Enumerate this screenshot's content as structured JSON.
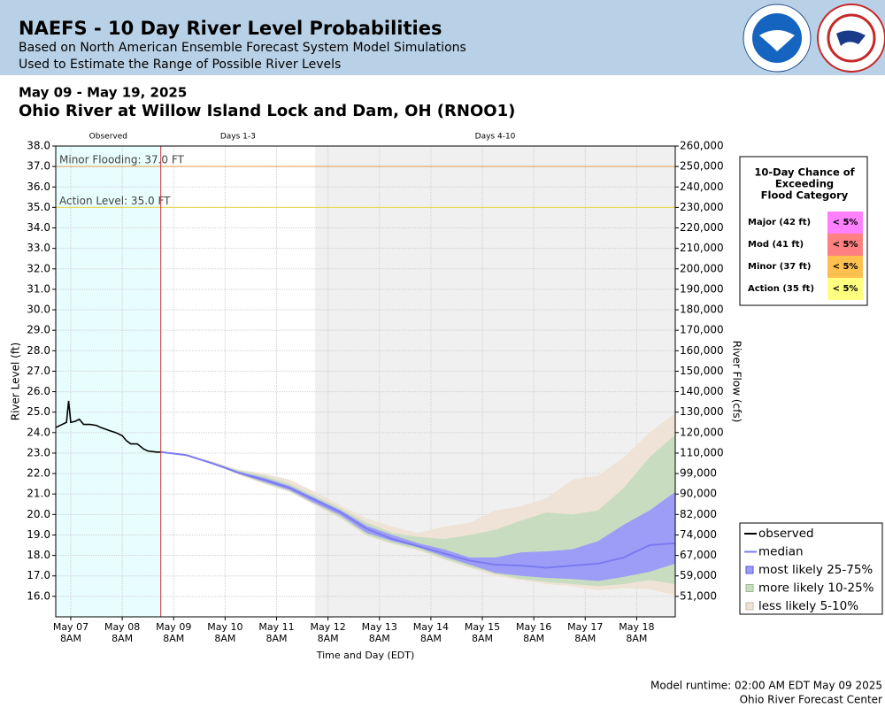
{
  "chart_data": {
    "type": "line",
    "title": "NAEFS - 10 Day River Level Probabilities",
    "subtitle": [
      "Based on North American Ensemble Forecast System Model Simulations",
      "Used to Estimate the Range of Possible River Levels"
    ],
    "date_range": "May 09 - May 19, 2025",
    "station": "Ohio River at Willow Island Lock and Dam, OH (RNOO1)",
    "ylabel": "River Level (ft)",
    "y2label": "River Flow (cfs)",
    "xlabel": "Time and Day (EDT)",
    "xlim": [
      "2025-05-07T01:00",
      "2025-05-19T02:00"
    ],
    "ylim": [
      15,
      38
    ],
    "yticks": [
      {
        "value": 16,
        "label": "16.0"
      },
      {
        "value": 17,
        "label": "17.0"
      },
      {
        "value": 18,
        "label": "18.0"
      },
      {
        "value": 19,
        "label": "19.0"
      },
      {
        "value": 20,
        "label": "20.0"
      },
      {
        "value": 21,
        "label": "21.0"
      },
      {
        "value": 22,
        "label": "22.0"
      },
      {
        "value": 23,
        "label": "23.0"
      },
      {
        "value": 24,
        "label": "24.0"
      },
      {
        "value": 25,
        "label": "25.0"
      },
      {
        "value": 26,
        "label": "26.0"
      },
      {
        "value": 27,
        "label": "27.0"
      },
      {
        "value": 28,
        "label": "28.0"
      },
      {
        "value": 29,
        "label": "29.0"
      },
      {
        "value": 30,
        "label": "30.0"
      },
      {
        "value": 31,
        "label": "31.0"
      },
      {
        "value": 32,
        "label": "32.0"
      },
      {
        "value": 33,
        "label": "33.0"
      },
      {
        "value": 34,
        "label": "34.0"
      },
      {
        "value": 35,
        "label": "35.0"
      },
      {
        "value": 36,
        "label": "36.0"
      },
      {
        "value": 37,
        "label": "37.0"
      },
      {
        "value": 38,
        "label": "38.0"
      }
    ],
    "y2ticks": [
      {
        "value": 51000,
        "label": "51,000"
      },
      {
        "value": 59000,
        "label": "59,000"
      },
      {
        "value": 67000,
        "label": "67,000"
      },
      {
        "value": 74000,
        "label": "74,000"
      },
      {
        "value": 82000,
        "label": "82,000"
      },
      {
        "value": 90000,
        "label": "90,000"
      },
      {
        "value": 99000,
        "label": "99,000"
      },
      {
        "value": 110000,
        "label": "110,000"
      },
      {
        "value": 120000,
        "label": "120,000"
      },
      {
        "value": 130000,
        "label": "130,000"
      },
      {
        "value": 140000,
        "label": "140,000"
      },
      {
        "value": 150000,
        "label": "150,000"
      },
      {
        "value": 160000,
        "label": "160,000"
      },
      {
        "value": 170000,
        "label": "170,000"
      },
      {
        "value": 180000,
        "label": "180,000"
      },
      {
        "value": 190000,
        "label": "190,000"
      },
      {
        "value": 200000,
        "label": "200,000"
      },
      {
        "value": 210000,
        "label": "210,000"
      },
      {
        "value": 220000,
        "label": "220,000"
      },
      {
        "value": 230000,
        "label": "230,000"
      },
      {
        "value": 240000,
        "label": "240,000"
      },
      {
        "value": 250000,
        "label": "250,000"
      },
      {
        "value": 260000,
        "label": "260,000"
      }
    ],
    "xticks": [
      {
        "value": "2025-05-07T08:00",
        "label": [
          "May 07",
          "8AM"
        ]
      },
      {
        "value": "2025-05-08T08:00",
        "label": [
          "May 08",
          "8AM"
        ]
      },
      {
        "value": "2025-05-09T08:00",
        "label": [
          "May 09",
          "8AM"
        ]
      },
      {
        "value": "2025-05-10T08:00",
        "label": [
          "May 10",
          "8AM"
        ]
      },
      {
        "value": "2025-05-11T08:00",
        "label": [
          "May 11",
          "8AM"
        ]
      },
      {
        "value": "2025-05-12T08:00",
        "label": [
          "May 12",
          "8AM"
        ]
      },
      {
        "value": "2025-05-13T08:00",
        "label": [
          "May 13",
          "8AM"
        ]
      },
      {
        "value": "2025-05-14T08:00",
        "label": [
          "May 14",
          "8AM"
        ]
      },
      {
        "value": "2025-05-15T08:00",
        "label": [
          "May 15",
          "8AM"
        ]
      },
      {
        "value": "2025-05-16T08:00",
        "label": [
          "May 16",
          "8AM"
        ]
      },
      {
        "value": "2025-05-17T08:00",
        "label": [
          "May 17",
          "8AM"
        ]
      },
      {
        "value": "2025-05-18T08:00",
        "label": [
          "May 18",
          "8AM"
        ]
      }
    ],
    "grid": true,
    "legend": "lower right",
    "regions": [
      {
        "label": "Observed",
        "start": "2025-05-07T01:00",
        "end": "2025-05-09T02:00",
        "color": "#e8fdfd"
      },
      {
        "label": "Days 1-3",
        "start": "2025-05-09T02:00",
        "end": "2025-05-12T02:00"
      },
      {
        "label": "Days 4-10",
        "start": "2025-05-12T02:00",
        "end": "2025-05-19T02:00",
        "color": "#f0f0f0"
      }
    ],
    "runtime_line": {
      "value": "2025-05-09T02:00",
      "color": "#cc3333"
    },
    "thresholds": [
      {
        "label": "Minor Flooding: 37.0 FT",
        "value": 37,
        "color": "#e8a050"
      },
      {
        "label": "Action Level: 35.0 FT",
        "value": 35,
        "color": "#e8d840"
      }
    ],
    "observed": {
      "name": "observed",
      "color": "#000000",
      "x": [
        "2025-05-07T01:00",
        "2025-05-07T04:00",
        "2025-05-07T06:00",
        "2025-05-07T07:00",
        "2025-05-07T08:00",
        "2025-05-07T10:00",
        "2025-05-07T12:00",
        "2025-05-07T14:00",
        "2025-05-07T17:00",
        "2025-05-07T20:00",
        "2025-05-07T22:00",
        "2025-05-08T02:00",
        "2025-05-08T05:00",
        "2025-05-08T08:00",
        "2025-05-08T10:00",
        "2025-05-08T12:00",
        "2025-05-08T15:00",
        "2025-05-08T18:00",
        "2025-05-08T20:00",
        "2025-05-09T00:00",
        "2025-05-09T02:00"
      ],
      "values": [
        24.25,
        24.4,
        24.5,
        25.55,
        24.5,
        24.55,
        24.65,
        24.4,
        24.4,
        24.35,
        24.25,
        24.1,
        24.0,
        23.85,
        23.6,
        23.45,
        23.45,
        23.2,
        23.1,
        23.05,
        23.05
      ]
    },
    "forecast": {
      "x": [
        "2025-05-09T02:00",
        "2025-05-09T14:00",
        "2025-05-10T02:00",
        "2025-05-10T14:00",
        "2025-05-11T02:00",
        "2025-05-11T14:00",
        "2025-05-12T02:00",
        "2025-05-12T14:00",
        "2025-05-13T02:00",
        "2025-05-13T14:00",
        "2025-05-14T02:00",
        "2025-05-14T14:00",
        "2025-05-15T02:00",
        "2025-05-15T14:00",
        "2025-05-16T02:00",
        "2025-05-16T14:00",
        "2025-05-17T02:00",
        "2025-05-17T14:00",
        "2025-05-18T02:00",
        "2025-05-18T14:00",
        "2025-05-19T02:00"
      ],
      "median": {
        "name": "median",
        "color": "#7b7bf0",
        "values": [
          23.05,
          22.9,
          22.5,
          22.05,
          21.7,
          21.3,
          20.7,
          20.1,
          19.3,
          18.8,
          18.45,
          18.1,
          17.75,
          17.55,
          17.5,
          17.4,
          17.5,
          17.6,
          17.9,
          18.5,
          18.6
        ]
      },
      "bands": [
        {
          "name": "less likely 5-10%",
          "color": "#eee3d6",
          "lower": [
            23.05,
            22.9,
            22.5,
            21.95,
            21.5,
            21.1,
            20.45,
            19.8,
            18.95,
            18.55,
            18.25,
            17.8,
            17.4,
            17.0,
            16.8,
            16.6,
            16.5,
            16.3,
            16.4,
            16.35,
            16.05
          ],
          "upper": [
            23.05,
            22.9,
            22.6,
            22.2,
            22.0,
            21.7,
            21.1,
            20.45,
            19.8,
            19.4,
            19.1,
            19.4,
            19.6,
            20.2,
            20.4,
            20.8,
            21.7,
            21.9,
            22.8,
            24.0,
            24.95
          ]
        },
        {
          "name": "more likely 10-25%",
          "color": "#c8ddc0",
          "lower": [
            23.05,
            22.9,
            22.5,
            22.0,
            21.55,
            21.15,
            20.5,
            19.85,
            19.0,
            18.6,
            18.3,
            17.85,
            17.45,
            17.1,
            16.85,
            16.7,
            16.6,
            16.5,
            16.6,
            16.8,
            16.6
          ],
          "upper": [
            23.05,
            22.9,
            22.55,
            22.15,
            21.9,
            21.5,
            20.9,
            20.3,
            19.6,
            19.1,
            18.9,
            18.8,
            19.0,
            19.25,
            19.7,
            20.1,
            20.0,
            20.2,
            21.3,
            22.8,
            23.9
          ]
        },
        {
          "name": "most likely 25-75%",
          "color": "#9d9df8",
          "lower": [
            23.05,
            22.9,
            22.5,
            22.0,
            21.6,
            21.2,
            20.55,
            19.95,
            19.1,
            18.7,
            18.4,
            17.95,
            17.55,
            17.15,
            17.0,
            16.9,
            16.85,
            16.75,
            16.95,
            17.2,
            17.6
          ],
          "upper": [
            23.05,
            22.9,
            22.55,
            22.1,
            21.8,
            21.4,
            20.8,
            20.2,
            19.45,
            19.0,
            18.6,
            18.3,
            17.9,
            17.9,
            18.15,
            18.2,
            18.3,
            18.7,
            19.5,
            20.2,
            21.1
          ]
        }
      ]
    },
    "exceedance": {
      "title": [
        "10-Day Chance of",
        "Exceeding",
        "Flood Category"
      ],
      "rows": [
        {
          "label": "Major (42 ft)",
          "value": "< 5%",
          "color": "#ff80ff"
        },
        {
          "label": "Mod (41 ft)",
          "value": "< 5%",
          "color": "#ff8080"
        },
        {
          "label": "Minor (37 ft)",
          "value": "< 5%",
          "color": "#ffc050"
        },
        {
          "label": "Action (35 ft)",
          "value": "< 5%",
          "color": "#ffff80"
        }
      ]
    },
    "footer": [
      "Model runtime: 02:00 AM EDT May 09 2025",
      "Ohio River Forecast Center"
    ]
  }
}
